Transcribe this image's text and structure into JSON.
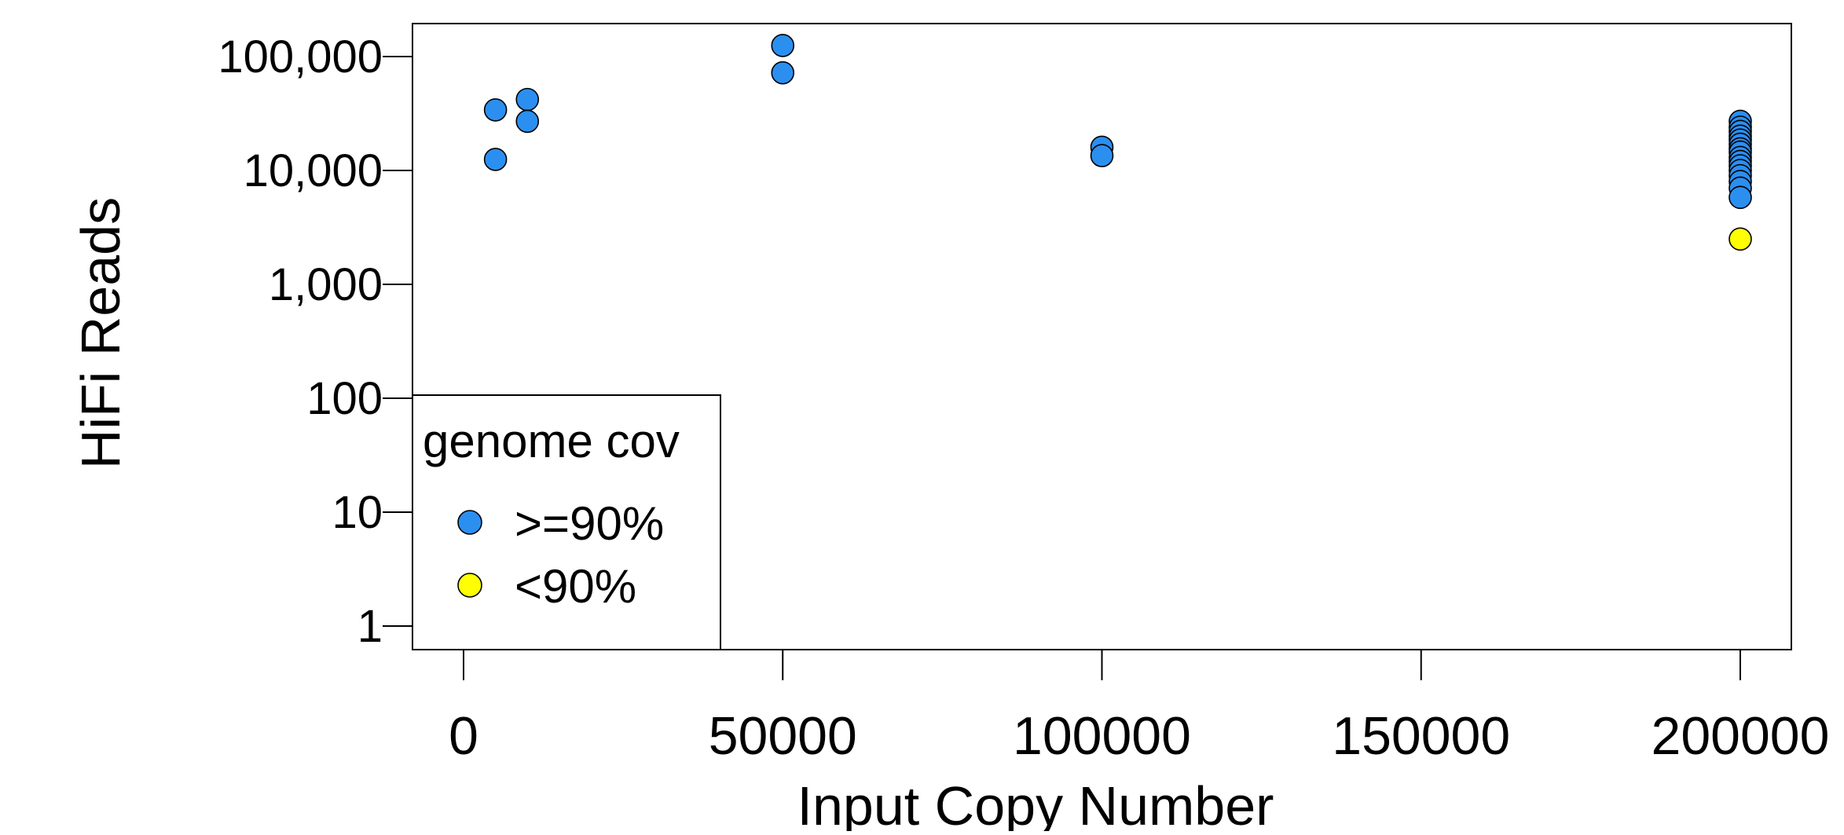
{
  "chart_data": {
    "type": "scatter",
    "title": "",
    "xlabel": "Input Copy Number",
    "ylabel": "HiFi Reads",
    "x_scale": "linear",
    "y_scale": "log10",
    "xlim": [
      -8000,
      208000
    ],
    "ylim": [
      0.5,
      200000
    ],
    "x_ticks": [
      0,
      50000,
      100000,
      150000,
      200000
    ],
    "x_tick_labels": [
      "0",
      "50000",
      "100000",
      "150000",
      "200000"
    ],
    "y_ticks": [
      1,
      10,
      100,
      1000,
      10000,
      100000
    ],
    "y_tick_labels": [
      "1",
      "10",
      "100",
      "1,000",
      "10,000",
      "100,000"
    ],
    "grid": false,
    "legend": {
      "title": "genome cov",
      "position": "bottom-left"
    },
    "series": [
      {
        "name": ">=90%",
        "color": "#2B8FF0",
        "points": [
          {
            "x": 5000,
            "y": 34000
          },
          {
            "x": 5000,
            "y": 12500
          },
          {
            "x": 10000,
            "y": 42000
          },
          {
            "x": 10000,
            "y": 27000
          },
          {
            "x": 50000,
            "y": 125000
          },
          {
            "x": 50000,
            "y": 72000
          },
          {
            "x": 100000,
            "y": 16000
          },
          {
            "x": 100000,
            "y": 13500
          },
          {
            "x": 200000,
            "y": 27000
          },
          {
            "x": 200000,
            "y": 24000
          },
          {
            "x": 200000,
            "y": 22000
          },
          {
            "x": 200000,
            "y": 20000
          },
          {
            "x": 200000,
            "y": 18500
          },
          {
            "x": 200000,
            "y": 17000
          },
          {
            "x": 200000,
            "y": 15500
          },
          {
            "x": 200000,
            "y": 14500
          },
          {
            "x": 200000,
            "y": 13000
          },
          {
            "x": 200000,
            "y": 12000
          },
          {
            "x": 200000,
            "y": 11000
          },
          {
            "x": 200000,
            "y": 10000
          },
          {
            "x": 200000,
            "y": 9000
          },
          {
            "x": 200000,
            "y": 8000
          },
          {
            "x": 200000,
            "y": 7000
          },
          {
            "x": 200000,
            "y": 5800
          }
        ]
      },
      {
        "name": "<90%",
        "color": "#FFFF00",
        "points": [
          {
            "x": 200000,
            "y": 2500
          }
        ]
      }
    ]
  }
}
